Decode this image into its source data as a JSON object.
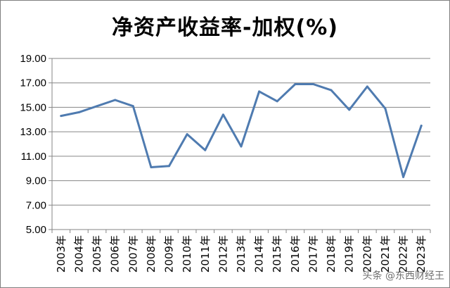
{
  "chart_data": {
    "type": "line",
    "title": "净资产收益率-加权(%)",
    "xlabel": "",
    "ylabel": "",
    "ylim": [
      5.0,
      19.0
    ],
    "yticks": [
      "5.00",
      "7.00",
      "9.00",
      "11.00",
      "13.00",
      "15.00",
      "17.00",
      "19.00"
    ],
    "grid": true,
    "legend": "none",
    "categories": [
      "2003年",
      "2004年",
      "2005年",
      "2006年",
      "2007年",
      "2008年",
      "2009年",
      "2010年",
      "2011年",
      "2012年",
      "2013年",
      "2014年",
      "2015年",
      "2016年",
      "2017年",
      "2018年",
      "2019年",
      "2020年",
      "2021年",
      "2022年",
      "2023年"
    ],
    "series": [
      {
        "values": [
          14.3,
          14.6,
          15.1,
          15.6,
          15.1,
          10.1,
          10.2,
          12.8,
          11.5,
          14.4,
          11.8,
          16.3,
          15.5,
          16.9,
          16.9,
          16.4,
          14.8,
          16.7,
          14.9,
          9.3,
          13.5
        ],
        "color": "#4f7bb0"
      }
    ]
  },
  "watermark": "头条 @东西财经王"
}
